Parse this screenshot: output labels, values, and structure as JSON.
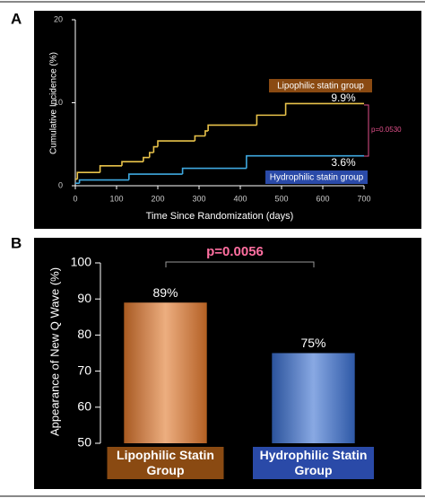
{
  "chart_data": [
    {
      "type": "line",
      "label": "A",
      "x_label": "Time Since Randomization (days)",
      "y_label": "Cumulative Incidence (%)",
      "xlim": [
        0,
        700
      ],
      "xticks": [
        0,
        100,
        200,
        300,
        400,
        500,
        600,
        700
      ],
      "ylim": [
        0,
        20
      ],
      "yticks": [
        0,
        10,
        20
      ],
      "series": [
        {
          "name": "Lipophilic statin group",
          "color": "#e8c24a",
          "label_color": "#8a4a12",
          "x": [
            0,
            5,
            60,
            113,
            165,
            180,
            190,
            200,
            290,
            315,
            322,
            440,
            510,
            700
          ],
          "values": [
            0.8,
            1.6,
            2.4,
            2.9,
            3.4,
            4.0,
            4.7,
            5.4,
            6.0,
            6.6,
            7.3,
            8.5,
            9.9,
            9.9
          ]
        },
        {
          "name": "Hydrophilic statin group",
          "color": "#3fa9e0",
          "label_color": "#2a4aa8",
          "x": [
            0,
            10,
            130,
            260,
            415,
            700
          ],
          "values": [
            0.3,
            0.7,
            1.4,
            2.1,
            3.6,
            3.6
          ]
        }
      ],
      "annotations": [
        "9.9%",
        "3.6%",
        "p=0.0530"
      ]
    },
    {
      "type": "bar",
      "label": "B",
      "y_label": "Appearance of New Q Wave  (%)",
      "categories": [
        "Lipophilic Statin Group",
        "Hydrophilic Statin Group"
      ],
      "values": [
        89,
        75
      ],
      "value_labels": [
        "89%",
        "75%"
      ],
      "colors": [
        "#e0782a",
        "#3a6fd0"
      ],
      "box_colors": [
        "#8a4a12",
        "#2a4aa8"
      ],
      "ylim": [
        50,
        100
      ],
      "yticks": [
        50,
        60,
        70,
        80,
        90,
        100
      ],
      "annotations": [
        "p=0.0056"
      ]
    }
  ]
}
